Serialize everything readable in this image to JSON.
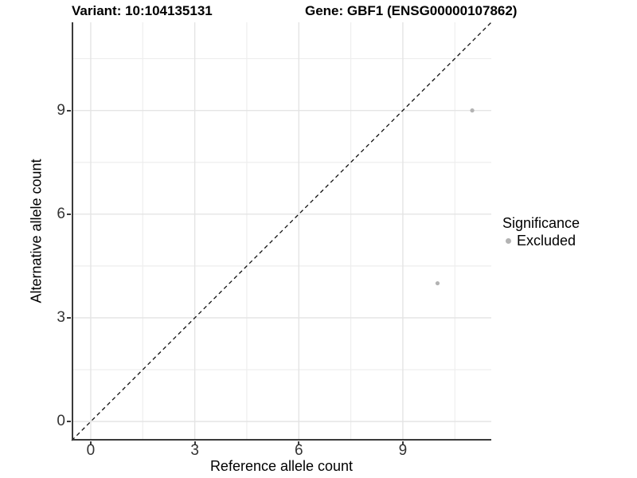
{
  "chart_data": {
    "type": "scatter",
    "title_left": "Variant: 10:104135131",
    "title_right": "Gene: GBF1 (ENSG00000107862)",
    "xlabel": "Reference allele count",
    "ylabel": "Alternative allele count",
    "xlim": [
      -0.55,
      11.55
    ],
    "ylim": [
      -0.55,
      11.55
    ],
    "x_ticks": [
      0,
      3,
      6,
      9
    ],
    "y_ticks": [
      0,
      3,
      6,
      9
    ],
    "x_minor_ticks": [
      1.5,
      4.5,
      7.5,
      10.5
    ],
    "y_minor_ticks": [
      1.5,
      4.5,
      7.5,
      10.5
    ],
    "grid": true,
    "series": [
      {
        "name": "Excluded",
        "color": "#b3b3b3",
        "points": [
          {
            "x": 10,
            "y": 4
          },
          {
            "x": 11,
            "y": 9
          }
        ]
      }
    ],
    "reference_line": {
      "kind": "identity",
      "style": "dashed",
      "color": "#111111"
    },
    "legend": {
      "position": "right",
      "title": "Significance",
      "items": [
        {
          "label": "Excluded",
          "color": "#b3b3b3"
        }
      ]
    },
    "colors": {
      "axis_line": "#3a3a3a",
      "grid_major": "#e4e4e4",
      "grid_minor": "#eeeeee",
      "tick_text": "#333333",
      "point": "#b3b3b3"
    }
  }
}
